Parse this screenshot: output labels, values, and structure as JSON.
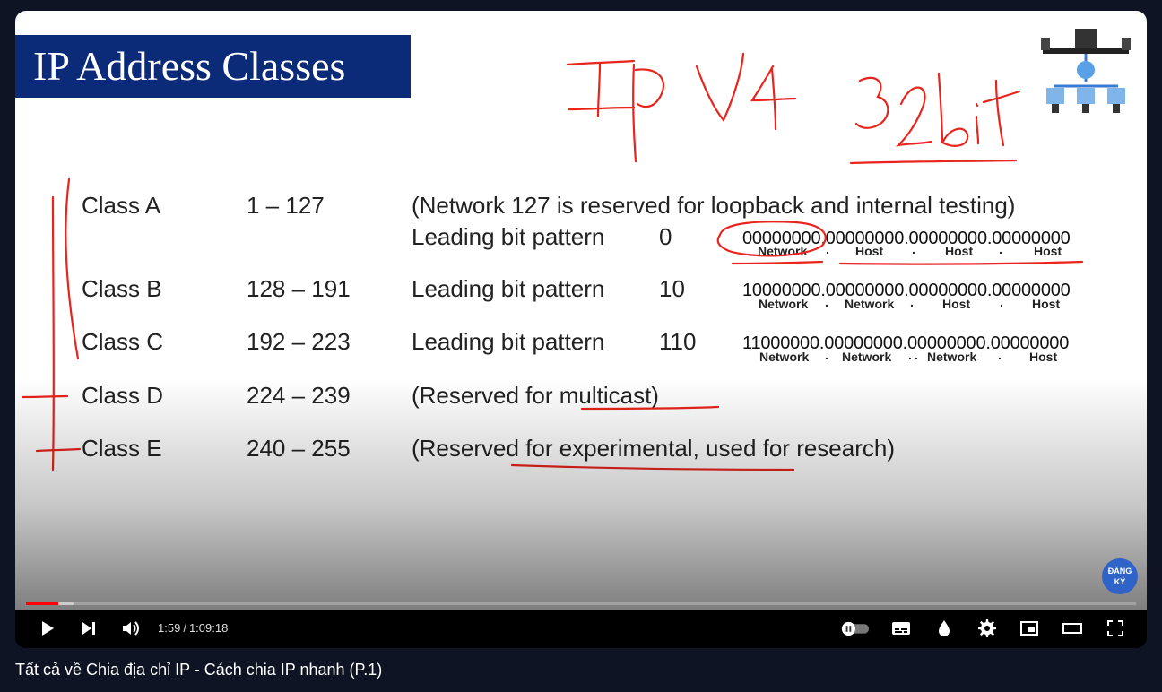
{
  "slide": {
    "title": "IP Address Classes",
    "rows": [
      {
        "name": "Class A",
        "range": "1 – 127",
        "desc": "(Network 127 is reserved for loopback and internal testing)"
      },
      {
        "name": "Class B",
        "range": "128 – 191",
        "desc": "Leading bit pattern",
        "bit": "10"
      },
      {
        "name": "Class  C",
        "range": "192 – 223",
        "desc": "Leading bit pattern",
        "bit": "110"
      },
      {
        "name": "Class  D",
        "range": "224 – 239",
        "desc": "(Reserved for multicast)"
      },
      {
        "name": "Class E",
        "range": "240 – 255",
        "desc": "(Reserved for experimental, used for research)"
      }
    ],
    "class_a_pattern": {
      "desc": "Leading bit pattern",
      "bit": "0"
    },
    "bit_strings": [
      "00000000.00000000.00000000.00000000",
      "10000000.00000000.00000000.00000000",
      "11000000.00000000.00000000.00000000"
    ],
    "labels": {
      "a": [
        "Network",
        ".",
        "Host",
        ".",
        "Host",
        ".",
        "Host"
      ],
      "b": [
        "Network",
        ".",
        "Network",
        ".",
        "Host",
        ".",
        "Host"
      ],
      "c": [
        "Network",
        ".",
        "Network",
        ".",
        ".",
        "Network",
        ".",
        "Host"
      ]
    }
  },
  "annotations": {
    "ipv4": "IP V4",
    "bits": "32bit"
  },
  "subscribe": {
    "line1": "ĐĂNG",
    "line2": "KÝ"
  },
  "player": {
    "current_time": "1:59",
    "duration": "1:09:18",
    "progress_fraction": 0.0287,
    "progress_color": "#ff0000"
  },
  "video_title": "Tất cả về Chia địa chỉ IP - Cách chia IP nhanh (P.1)",
  "icons": [
    "play-icon",
    "next-icon",
    "volume-icon",
    "autoplay-toggle-icon",
    "subtitles-icon",
    "ambient-icon",
    "settings-icon",
    "miniplayer-icon",
    "theater-icon",
    "fullscreen-icon"
  ]
}
